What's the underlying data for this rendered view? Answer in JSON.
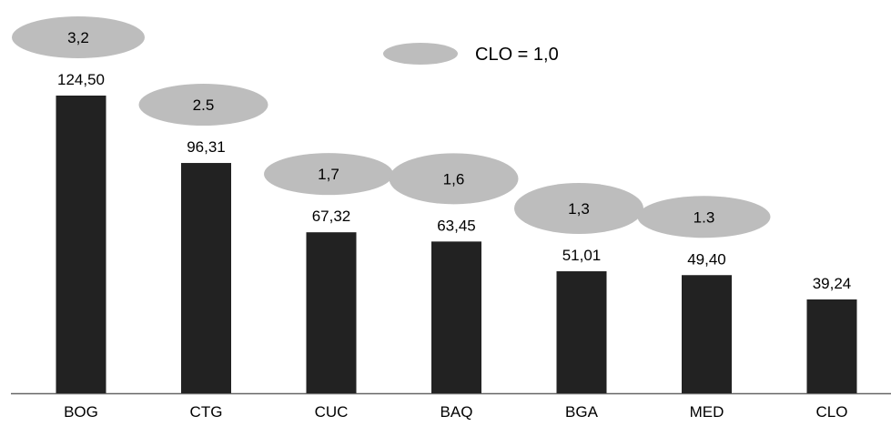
{
  "chart_data": {
    "type": "bar",
    "categories": [
      "BOG",
      "CTG",
      "CUC",
      "BAQ",
      "BGA",
      "MED",
      "CLO"
    ],
    "values": [
      124.5,
      96.31,
      67.32,
      63.45,
      51.01,
      49.4,
      39.24
    ],
    "value_labels": [
      "124,50",
      "96,31",
      "67,32",
      "63,45",
      "51,01",
      "49,40",
      "39,24"
    ],
    "ratio_labels": [
      "3,2",
      "2.5",
      "1,7",
      "1,6",
      "1,3",
      "1.3",
      null
    ],
    "legend": {
      "label": "CLO = 1,0",
      "placement": "top-center"
    },
    "title": "",
    "xlabel": "",
    "ylabel": "",
    "ylim": [
      0,
      124.5
    ],
    "grid": false,
    "y_axis_visible": false
  },
  "colors": {
    "bar": "#222222",
    "bubble": "#bdbdbd",
    "axis": "#666666",
    "text": "#000000",
    "background": "#ffffff"
  }
}
